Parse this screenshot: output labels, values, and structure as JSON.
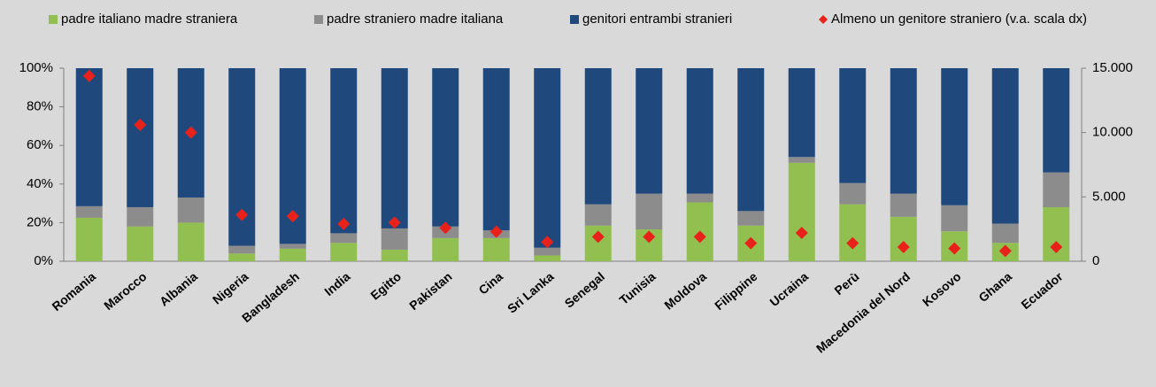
{
  "chart_data": {
    "type": "bar",
    "stacked": true,
    "legend": "top",
    "categories": [
      "Romania",
      "Marocco",
      "Albania",
      "Nigeria",
      "Bangladesh",
      "India",
      "Egitto",
      "Pakistan",
      "Cina",
      "Sri Lanka",
      "Senegal",
      "Tunisia",
      "Moldova",
      "Filippine",
      "Ucraina",
      "Perù",
      "Macedonia del Nord",
      "Kosovo",
      "Ghana",
      "Ecuador"
    ],
    "series": [
      {
        "name": "padre italiano madre straniera",
        "color": "#92c050",
        "values": [
          22.5,
          18,
          20,
          4,
          6.5,
          9.5,
          6,
          12,
          12,
          3,
          18.5,
          16.5,
          30.5,
          18.5,
          51,
          29.5,
          23,
          15.5,
          9.5,
          28
        ]
      },
      {
        "name": "padre straniero madre italiana",
        "color": "#8c8c8c",
        "values": [
          6,
          10,
          13,
          4,
          2.5,
          5,
          11,
          6,
          4,
          4,
          11,
          18.5,
          4.5,
          7.5,
          3,
          11,
          12,
          13.5,
          10,
          18
        ]
      },
      {
        "name": "genitori entrambi stranieri",
        "color": "#1f497d",
        "values": [
          71.5,
          72,
          67,
          92,
          91,
          85.5,
          83,
          82,
          84,
          93,
          70.5,
          65,
          65,
          74,
          46,
          59.5,
          65,
          71,
          80.5,
          54
        ]
      },
      {
        "name": "Almeno un genitore straniero (v.a. scala dx)",
        "color": "#e8221b",
        "type": "marker",
        "axis": "y2",
        "values": [
          14400,
          10600,
          10000,
          3600,
          3500,
          2900,
          3000,
          2600,
          2300,
          1500,
          1900,
          1900,
          1900,
          1400,
          2200,
          1400,
          1100,
          1000,
          800,
          1100
        ]
      }
    ],
    "ylim": [
      0,
      100
    ],
    "yticks": [
      {
        "value": 0,
        "label": "0%"
      },
      {
        "value": 20,
        "label": "20%"
      },
      {
        "value": 40,
        "label": "40%"
      },
      {
        "value": 60,
        "label": "60%"
      },
      {
        "value": 80,
        "label": "80%"
      },
      {
        "value": 100,
        "label": "100%"
      }
    ],
    "y2lim": [
      0,
      15000
    ],
    "y2ticks": [
      0,
      {
        "value": 5000,
        "label": "5.000"
      },
      {
        "value": 10000,
        "label": "10.000"
      },
      {
        "value": 15000,
        "label": "15.000"
      }
    ]
  }
}
